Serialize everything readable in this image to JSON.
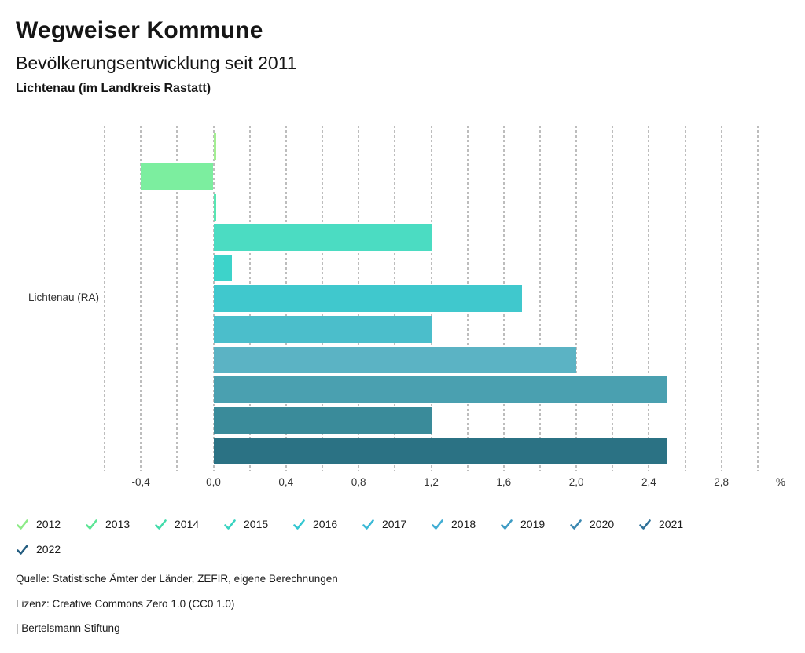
{
  "header": {
    "title": "Wegweiser Kommune",
    "subtitle": "Bevölkerungsentwicklung seit 2011",
    "location": "Lichtenau (im Landkreis Rastatt)"
  },
  "chart_data": {
    "type": "bar",
    "orientation": "horizontal",
    "category": "Lichtenau (RA)",
    "unit_label": "%",
    "xlim": [
      -0.6,
      3.0
    ],
    "grid_step": 0.2,
    "grid": true,
    "legend_position": "bottom",
    "x_tick_values": [
      -0.4,
      0.0,
      0.4,
      0.8,
      1.2,
      1.6,
      2.0,
      2.4,
      2.8
    ],
    "x_tick_labels": [
      "-0,4",
      "0,0",
      "0,4",
      "0,8",
      "1,2",
      "1,6",
      "2,0",
      "2,4",
      "2,8"
    ],
    "series": [
      {
        "name": "2012",
        "value": 0.0,
        "color": "#a3ee92"
      },
      {
        "name": "2013",
        "value": -0.4,
        "color": "#7cee9f"
      },
      {
        "name": "2014",
        "value": 0.0,
        "color": "#58e6b3"
      },
      {
        "name": "2015",
        "value": 1.2,
        "color": "#4bdcc2"
      },
      {
        "name": "2016",
        "value": 0.1,
        "color": "#3dd3ca"
      },
      {
        "name": "2017",
        "value": 1.7,
        "color": "#40c8cd"
      },
      {
        "name": "2018",
        "value": 1.2,
        "color": "#4bbecb"
      },
      {
        "name": "2019",
        "value": 2.0,
        "color": "#5bb3c4"
      },
      {
        "name": "2020",
        "value": 2.5,
        "color": "#4aa0b0"
      },
      {
        "name": "2021",
        "value": 1.2,
        "color": "#3a8b9a"
      },
      {
        "name": "2022",
        "value": 2.5,
        "color": "#2b7284"
      }
    ]
  },
  "legend": {
    "items": [
      {
        "label": "2012",
        "color": "#8deb87"
      },
      {
        "label": "2013",
        "color": "#5ee596"
      },
      {
        "label": "2014",
        "color": "#43dcab"
      },
      {
        "label": "2015",
        "color": "#38d3c0"
      },
      {
        "label": "2016",
        "color": "#33c7d1"
      },
      {
        "label": "2017",
        "color": "#3ab9d6"
      },
      {
        "label": "2018",
        "color": "#41add3"
      },
      {
        "label": "2019",
        "color": "#3f9cc4"
      },
      {
        "label": "2020",
        "color": "#3a87b0"
      },
      {
        "label": "2021",
        "color": "#2f7097"
      },
      {
        "label": "2022",
        "color": "#245d80"
      }
    ]
  },
  "footer": {
    "source": "Quelle: Statistische Ämter der Länder, ZEFIR, eigene Berechnungen",
    "license": "Lizenz: Creative Commons Zero 1.0 (CC0 1.0)",
    "attribution": "| Bertelsmann Stiftung"
  }
}
